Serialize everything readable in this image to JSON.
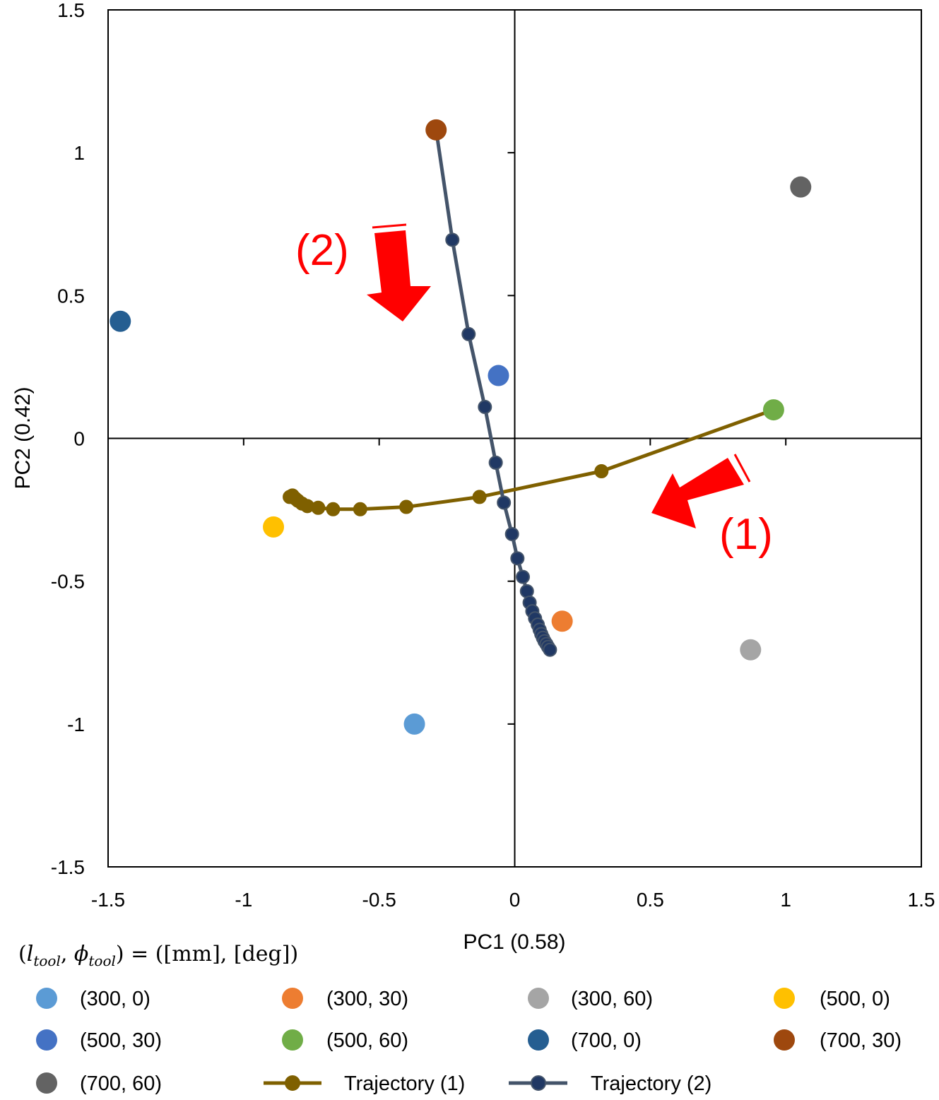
{
  "chart_data": {
    "type": "scatter",
    "xlabel": "PC1 (0.58)",
    "ylabel": "PC2 (0.42)",
    "xlim": [
      -1.5,
      1.5
    ],
    "ylim": [
      -1.5,
      1.5
    ],
    "x_ticks": [
      "-1.5",
      "-1",
      "-0.5",
      "0",
      "0.5",
      "1",
      "1.5"
    ],
    "y_ticks": [
      "1.5",
      "1",
      "0.5",
      "0",
      "-0.5",
      "-1",
      "-1.5"
    ],
    "x_tick_values": [
      -1.5,
      -1,
      -0.5,
      0,
      0.5,
      1,
      1.5
    ],
    "y_tick_values": [
      1.5,
      1,
      0.5,
      0,
      -0.5,
      -1,
      -1.5
    ],
    "grid": false,
    "legend_title": "(l_tool, φ_tool) = ([mm], [deg])",
    "legend_placement": "bottom",
    "points": [
      {
        "name": "(300, 0)",
        "color": "#5b9bd5",
        "x": -0.37,
        "y": -1.0
      },
      {
        "name": "(300, 30)",
        "color": "#ed7d31",
        "x": 0.175,
        "y": -0.64
      },
      {
        "name": "(300, 60)",
        "color": "#a5a5a5",
        "x": 0.87,
        "y": -0.74
      },
      {
        "name": "(500, 0)",
        "color": "#ffc000",
        "x": -0.89,
        "y": -0.31
      },
      {
        "name": "(500, 30)",
        "color": "#4472c4",
        "x": -0.06,
        "y": 0.22
      },
      {
        "name": "(500, 60)",
        "color": "#70ad47",
        "x": 0.955,
        "y": 0.1
      },
      {
        "name": "(700, 0)",
        "color": "#255e91",
        "x": -1.455,
        "y": 0.41
      },
      {
        "name": "(700, 30)",
        "color": "#9e480e",
        "x": -0.29,
        "y": 1.08
      },
      {
        "name": "(700, 60)",
        "color": "#636363",
        "x": 1.055,
        "y": 0.88
      }
    ],
    "trajectories": [
      {
        "name": "Trajectory (1)",
        "color": "#7f6000",
        "x": [
          0.955,
          0.32,
          -0.13,
          -0.4,
          -0.57,
          -0.67,
          -0.725,
          -0.765,
          -0.785,
          -0.8,
          -0.81,
          -0.82,
          -0.83
        ],
        "y": [
          0.1,
          -0.115,
          -0.205,
          -0.24,
          -0.248,
          -0.248,
          -0.243,
          -0.237,
          -0.228,
          -0.218,
          -0.21,
          -0.2,
          -0.205
        ]
      },
      {
        "name": "Trajectory (2)",
        "color": "#44546a",
        "marker_color": "#203864",
        "x": [
          -0.29,
          -0.23,
          -0.17,
          -0.11,
          -0.07,
          -0.04,
          -0.01,
          0.01,
          0.03,
          0.045,
          0.055,
          0.065,
          0.075,
          0.085,
          0.092,
          0.098,
          0.104,
          0.11,
          0.117,
          0.123,
          0.13
        ],
        "y": [
          1.08,
          0.695,
          0.365,
          0.11,
          -0.085,
          -0.225,
          -0.335,
          -0.42,
          -0.485,
          -0.535,
          -0.575,
          -0.605,
          -0.63,
          -0.652,
          -0.67,
          -0.685,
          -0.698,
          -0.71,
          -0.72,
          -0.73,
          -0.74
        ]
      }
    ],
    "annotations": [
      {
        "text": "(2)",
        "color": "#ff0000"
      },
      {
        "text": "(1)",
        "color": "#ff0000"
      }
    ]
  },
  "legend": {
    "title_parts": [
      "(",
      "l",
      "tool",
      ", ",
      "ϕ",
      "tool",
      ") = ([mm], [deg])"
    ]
  }
}
